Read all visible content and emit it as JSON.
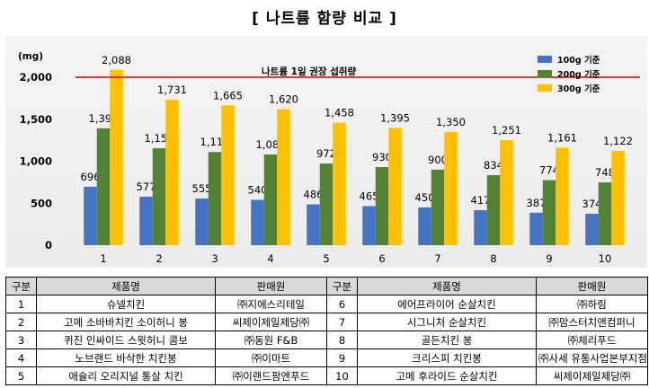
{
  "title": "[ 나트륨 함량 비교 ]",
  "chart_data": {
    "type": "bar",
    "title": "",
    "unit_label": "(mg)",
    "categories": [
      "1",
      "2",
      "3",
      "4",
      "5",
      "6",
      "7",
      "8",
      "9",
      "10"
    ],
    "series": [
      {
        "name": "100g 기준",
        "color": "#4472c4",
        "values": [
          696,
          577,
          555,
          540,
          486,
          465,
          450,
          417,
          387,
          374
        ],
        "labels": [
          "696",
          "577",
          "555",
          "540",
          "486",
          "465",
          "450",
          "417",
          "387",
          "374"
        ]
      },
      {
        "name": "200g 기준",
        "color": "#548235",
        "values": [
          1392,
          1154,
          1110,
          1080,
          972,
          930,
          900,
          834,
          774,
          748
        ],
        "labels": [
          "1,392",
          "1,154",
          "1,110",
          "1,080",
          "972",
          "930",
          "900",
          "834",
          "774",
          "748"
        ]
      },
      {
        "name": "300g 기준",
        "color": "#ffc000",
        "values": [
          2088,
          1731,
          1665,
          1620,
          1458,
          1395,
          1350,
          1251,
          1161,
          1122
        ],
        "labels": [
          "2,088",
          "1,731",
          "1,665",
          "1,620",
          "1,458",
          "1,395",
          "1,350",
          "1,251",
          "1,161",
          "1,122"
        ]
      }
    ],
    "ylim": [
      0,
      2000
    ],
    "yticks": [
      0,
      500,
      1000,
      1500,
      2000
    ],
    "ytick_labels": [
      "0",
      "500",
      "1,000",
      "1,500",
      "2,000"
    ],
    "reference_line": {
      "value": 2000,
      "label": "나트륨 1일 권장 섭취량",
      "color": "#e00000"
    },
    "grid": false,
    "legend": "top-right"
  },
  "table": {
    "headers": [
      "구분",
      "제품명",
      "판매원",
      "구분",
      "제품명",
      "판매원"
    ],
    "rows": [
      [
        "1",
        "슈넬치킨",
        "㈜지에스리테일",
        "6",
        "에어프라이어 순살치킨",
        "㈜하림"
      ],
      [
        "2",
        "고메 소바바치킨 소이허니 봉",
        "씨제이제일제당㈜",
        "7",
        "시그니처 순살치킨",
        "㈜맘스터치앤컴퍼니"
      ],
      [
        "3",
        "퀴진 인싸이드 스윗허니 콤보",
        "㈜동원 F&B",
        "8",
        "골든치킨 봉",
        "㈜체리푸드"
      ],
      [
        "4",
        "노브랜드 바삭한 치킨봉",
        "㈜이마트",
        "9",
        "크리스피 치킨봉",
        "㈜사세 유통사업본부지점"
      ],
      [
        "5",
        "애슐리 오리지널 통살 치킨",
        "㈜이랜드팜앤푸드",
        "10",
        "고메 후라이드 순살치킨",
        "씨제이제일제당㈜"
      ]
    ]
  }
}
